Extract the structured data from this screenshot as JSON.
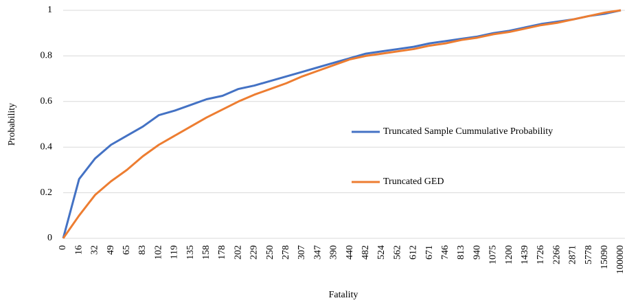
{
  "chart_data": {
    "type": "line",
    "x_label": "Fatality",
    "y_label": "Probability",
    "categories": [
      "0",
      "16",
      "32",
      "49",
      "65",
      "83",
      "102",
      "119",
      "135",
      "158",
      "178",
      "202",
      "229",
      "250",
      "278",
      "307",
      "347",
      "390",
      "440",
      "482",
      "524",
      "562",
      "612",
      "671",
      "746",
      "813",
      "940",
      "1075",
      "1200",
      "1439",
      "1726",
      "2266",
      "2871",
      "5778",
      "15090",
      "100000"
    ],
    "series": [
      {
        "name": "Truncated Sample Cummulative Probability",
        "color": "#4472c4",
        "values": [
          0,
          0.26,
          0.35,
          0.41,
          0.45,
          0.49,
          0.54,
          0.56,
          0.585,
          0.61,
          0.625,
          0.655,
          0.67,
          0.69,
          0.71,
          0.73,
          0.75,
          0.77,
          0.79,
          0.81,
          0.82,
          0.83,
          0.84,
          0.855,
          0.865,
          0.875,
          0.885,
          0.9,
          0.91,
          0.925,
          0.94,
          0.95,
          0.96,
          0.975,
          0.985,
          1.0
        ]
      },
      {
        "name": "Truncated GED",
        "color": "#ed7d31",
        "values": [
          0,
          0.1,
          0.19,
          0.25,
          0.3,
          0.36,
          0.41,
          0.45,
          0.49,
          0.53,
          0.565,
          0.6,
          0.63,
          0.655,
          0.68,
          0.71,
          0.735,
          0.76,
          0.785,
          0.8,
          0.81,
          0.82,
          0.83,
          0.845,
          0.855,
          0.87,
          0.88,
          0.895,
          0.905,
          0.92,
          0.935,
          0.945,
          0.96,
          0.975,
          0.99,
          1.0
        ]
      }
    ],
    "ylim": [
      0,
      1
    ],
    "yticks": [
      0,
      0.2,
      0.4,
      0.6,
      0.8,
      1
    ],
    "grid": true,
    "legend": "right"
  }
}
